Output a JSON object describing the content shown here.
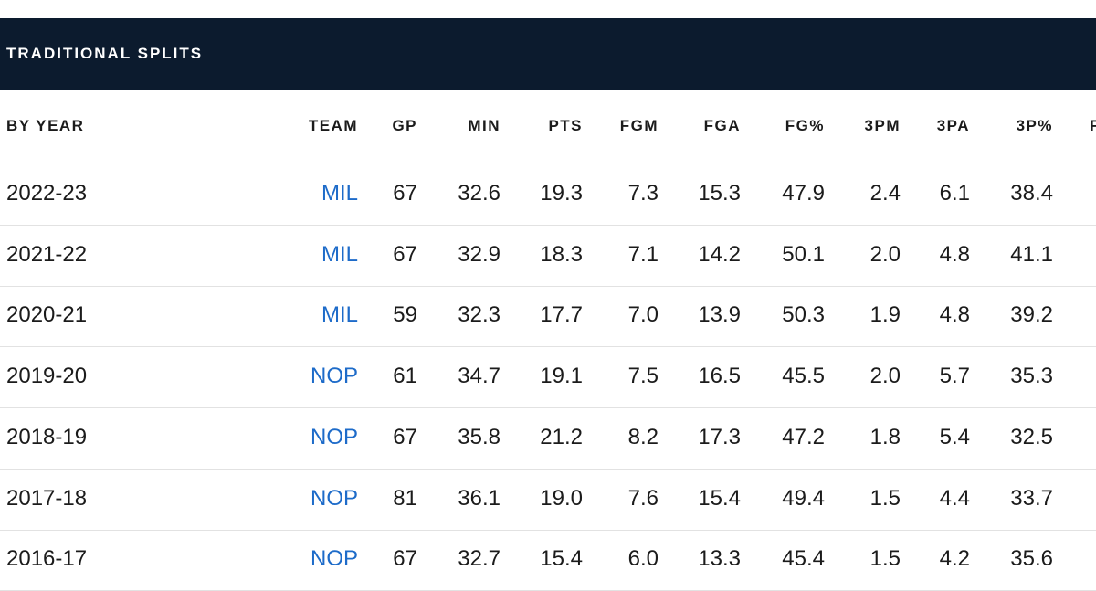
{
  "section_title": "TRADITIONAL SPLITS",
  "columns": [
    "BY YEAR",
    "TEAM",
    "GP",
    "MIN",
    "PTS",
    "FGM",
    "FGA",
    "FG%",
    "3PM",
    "3PA",
    "3P%",
    "F"
  ],
  "rows": [
    {
      "year": "2022-23",
      "team": "MIL",
      "gp": "67",
      "min": "32.6",
      "pts": "19.3",
      "fgm": "7.3",
      "fga": "15.3",
      "fg_pct": "47.9",
      "three_pm": "2.4",
      "three_pa": "6.1",
      "three_pct": "38.4"
    },
    {
      "year": "2021-22",
      "team": "MIL",
      "gp": "67",
      "min": "32.9",
      "pts": "18.3",
      "fgm": "7.1",
      "fga": "14.2",
      "fg_pct": "50.1",
      "three_pm": "2.0",
      "three_pa": "4.8",
      "three_pct": "41.1"
    },
    {
      "year": "2020-21",
      "team": "MIL",
      "gp": "59",
      "min": "32.3",
      "pts": "17.7",
      "fgm": "7.0",
      "fga": "13.9",
      "fg_pct": "50.3",
      "three_pm": "1.9",
      "three_pa": "4.8",
      "three_pct": "39.2"
    },
    {
      "year": "2019-20",
      "team": "NOP",
      "gp": "61",
      "min": "34.7",
      "pts": "19.1",
      "fgm": "7.5",
      "fga": "16.5",
      "fg_pct": "45.5",
      "three_pm": "2.0",
      "three_pa": "5.7",
      "three_pct": "35.3"
    },
    {
      "year": "2018-19",
      "team": "NOP",
      "gp": "67",
      "min": "35.8",
      "pts": "21.2",
      "fgm": "8.2",
      "fga": "17.3",
      "fg_pct": "47.2",
      "three_pm": "1.8",
      "three_pa": "5.4",
      "three_pct": "32.5"
    },
    {
      "year": "2017-18",
      "team": "NOP",
      "gp": "81",
      "min": "36.1",
      "pts": "19.0",
      "fgm": "7.6",
      "fga": "15.4",
      "fg_pct": "49.4",
      "three_pm": "1.5",
      "three_pa": "4.4",
      "three_pct": "33.7"
    },
    {
      "year": "2016-17",
      "team": "NOP",
      "gp": "67",
      "min": "32.7",
      "pts": "15.4",
      "fgm": "6.0",
      "fga": "13.3",
      "fg_pct": "45.4",
      "three_pm": "1.5",
      "three_pa": "4.2",
      "three_pct": "35.6"
    }
  ],
  "colors": {
    "header_bg": "#0c1b2e",
    "team_link": "#1d6bc9"
  }
}
